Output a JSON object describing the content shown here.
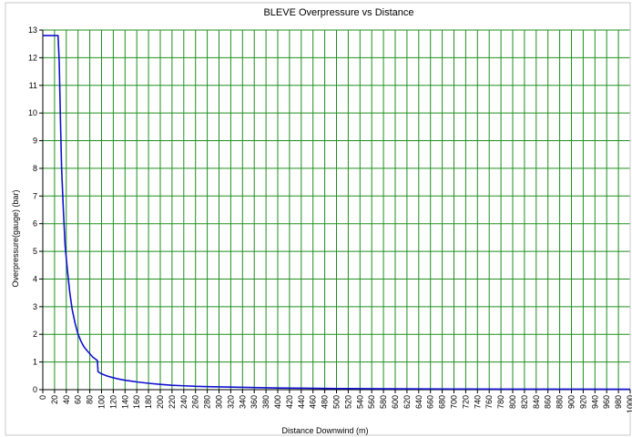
{
  "chart_data": {
    "type": "line",
    "title": "BLEVE Overpressure vs Distance",
    "xlabel": "Distance Downwind (m)",
    "ylabel": "Overpressure(gauge) (bar)",
    "xlim": [
      0,
      1000
    ],
    "ylim": [
      0,
      13
    ],
    "grid": true,
    "legend": "none",
    "colors": {
      "line": "#1010d0",
      "grid": "#1f8f1f",
      "axis": "#000000",
      "background": "#ffffff"
    },
    "x_ticks": [
      0,
      20,
      40,
      60,
      80,
      100,
      120,
      140,
      160,
      180,
      200,
      220,
      240,
      260,
      280,
      300,
      320,
      340,
      360,
      380,
      400,
      420,
      440,
      460,
      480,
      500,
      520,
      540,
      560,
      580,
      600,
      620,
      640,
      660,
      680,
      700,
      720,
      740,
      760,
      780,
      800,
      820,
      840,
      860,
      880,
      900,
      920,
      940,
      960,
      980,
      1000
    ],
    "y_ticks": [
      0,
      1,
      2,
      3,
      4,
      5,
      6,
      7,
      8,
      9,
      10,
      11,
      12,
      13
    ],
    "series": [
      {
        "x": [
          0,
          26,
          28,
          30,
          32,
          35,
          38,
          42,
          46,
          50,
          55,
          60,
          65,
          70,
          75,
          80,
          85,
          90,
          93,
          94,
          100,
          110,
          120,
          130,
          140,
          150,
          160,
          180,
          200,
          220,
          240,
          260,
          280,
          300,
          350,
          400,
          450,
          500,
          550,
          600,
          700,
          800,
          900,
          1000
        ],
        "y": [
          12.8,
          12.8,
          11.8,
          9.8,
          8.0,
          6.5,
          5.2,
          4.3,
          3.5,
          2.9,
          2.4,
          2.0,
          1.75,
          1.55,
          1.42,
          1.3,
          1.18,
          1.1,
          1.05,
          0.65,
          0.57,
          0.49,
          0.43,
          0.38,
          0.34,
          0.31,
          0.28,
          0.23,
          0.19,
          0.16,
          0.14,
          0.12,
          0.11,
          0.1,
          0.08,
          0.06,
          0.05,
          0.04,
          0.035,
          0.03,
          0.025,
          0.02,
          0.018,
          0.015
        ]
      }
    ]
  }
}
